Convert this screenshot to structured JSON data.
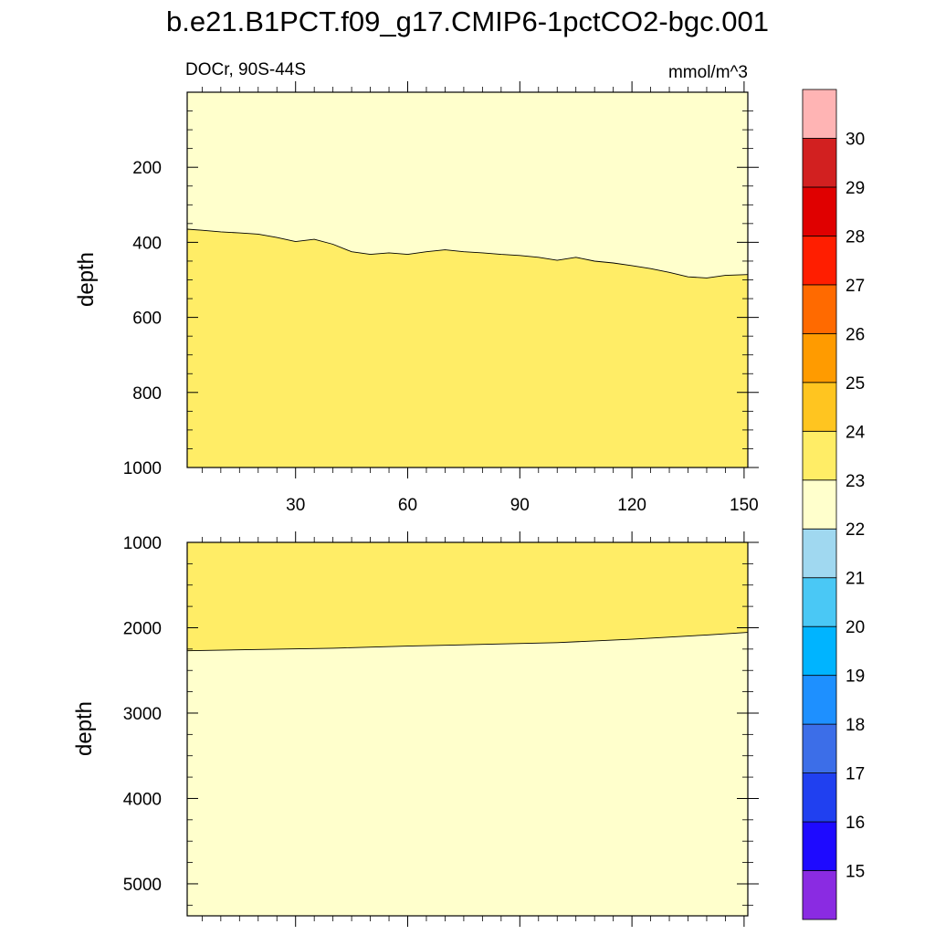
{
  "title": "b.e21.B1PCT.f09_g17.CMIP6-1pctCO2-bgc.001",
  "chart_data": [
    {
      "type": "contour",
      "panel": "upper",
      "left_label": "DOCr, 90S-44S",
      "right_label": "mmol/m^3",
      "ylabel": "depth",
      "xlabel": "",
      "xlim": [
        1,
        151
      ],
      "ylim": [
        0,
        1000
      ],
      "y_inverted": true,
      "x_ticks": [
        30,
        60,
        90,
        120,
        150
      ],
      "y_ticks": [
        200,
        400,
        600,
        800,
        1000
      ],
      "regions": [
        {
          "range": "22-23",
          "color": "#FFFFCC",
          "side": "shallow"
        },
        {
          "range": "23-24",
          "color": "#FFED66",
          "side": "deep"
        }
      ],
      "contour_23": {
        "x": [
          1,
          5,
          10,
          15,
          20,
          25,
          30,
          35,
          40,
          45,
          50,
          55,
          60,
          65,
          70,
          75,
          80,
          85,
          90,
          95,
          100,
          105,
          110,
          115,
          120,
          125,
          130,
          135,
          140,
          145,
          151
        ],
        "depth": [
          365,
          368,
          372,
          375,
          378,
          387,
          398,
          392,
          405,
          425,
          432,
          428,
          432,
          425,
          420,
          425,
          428,
          432,
          435,
          440,
          448,
          440,
          450,
          455,
          462,
          470,
          480,
          492,
          495,
          488,
          486
        ]
      }
    },
    {
      "type": "contour",
      "panel": "lower",
      "ylabel": "depth",
      "xlim": [
        1,
        151
      ],
      "ylim": [
        1000,
        5375
      ],
      "y_inverted": true,
      "y_ticks": [
        1000,
        2000,
        3000,
        4000,
        5000
      ],
      "regions": [
        {
          "range": "23-24",
          "color": "#FFED66",
          "side": "shallow"
        },
        {
          "range": "22-23",
          "color": "#FFFFCC",
          "side": "deep"
        }
      ],
      "contour_23": {
        "x": [
          1,
          20,
          40,
          60,
          80,
          100,
          120,
          140,
          151
        ],
        "depth": [
          2270,
          2255,
          2240,
          2215,
          2195,
          2175,
          2135,
          2085,
          2055
        ]
      }
    }
  ],
  "colorbar": {
    "labels": [
      "15",
      "16",
      "17",
      "18",
      "19",
      "20",
      "21",
      "22",
      "23",
      "24",
      "25",
      "26",
      "27",
      "28",
      "29",
      "30"
    ],
    "colors": [
      "#8A2BE2",
      "#1E0AFF",
      "#2040F0",
      "#3C6EE8",
      "#1E90FF",
      "#00B4FF",
      "#4AC8F5",
      "#A0D8F0",
      "#FFFFCC",
      "#FFED66",
      "#FFC520",
      "#FF9B00",
      "#FF6A00",
      "#FF1E00",
      "#E00000",
      "#D22020",
      "#FFB4B4"
    ]
  }
}
